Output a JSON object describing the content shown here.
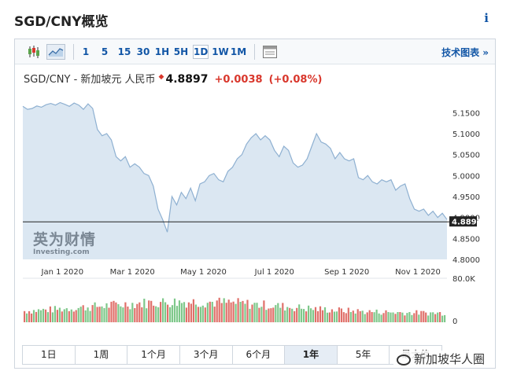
{
  "page": {
    "title": "SGD/CNY概览",
    "info_icon": "i"
  },
  "toolbar": {
    "chart_type_icons": [
      "candlestick-icon",
      "area-chart-icon"
    ],
    "intervals": [
      "1",
      "5",
      "15",
      "30",
      "1H",
      "5H",
      "1D",
      "1W",
      "1M"
    ],
    "active_interval": "1D",
    "settings_icon": "table-icon",
    "advanced_chart_label": "技术图表 »"
  },
  "quote": {
    "pair_name": "SGD/CNY - 新加坡元 人民币",
    "direction_icon": "up-arrow-icon",
    "price": "4.8897",
    "change": "+0.0038",
    "change_percent": "(+0.08%)",
    "color_up": "#d9372c"
  },
  "logo": {
    "cn_text": "英为财情",
    "en_text": "Investing.com"
  },
  "chart_data": {
    "type": "area",
    "x_tick_labels": [
      "Jan 1 2020",
      "Mar 1 2020",
      "May 1 2020",
      "Jul 1 2020",
      "Sep 1 2020",
      "Nov 1 2020"
    ],
    "y_tick_labels": [
      "5.1500",
      "5.1000",
      "5.0500",
      "5.0000",
      "4.9500",
      "4.9000",
      "4.8500",
      "4.8000"
    ],
    "ylim": [
      4.8,
      5.19
    ],
    "current_value": 4.8897,
    "current_value_label": "4.8897",
    "series": [
      {
        "x": [
          "2019-11-28",
          "2019-12-02",
          "2019-12-06",
          "2019-12-10",
          "2019-12-14",
          "2019-12-18",
          "2019-12-22",
          "2019-12-26",
          "2019-12-30",
          "2020-01-03",
          "2020-01-07",
          "2020-01-11",
          "2020-01-15",
          "2020-01-19",
          "2020-01-23",
          "2020-01-27",
          "2020-01-31",
          "2020-02-04",
          "2020-02-08",
          "2020-02-12",
          "2020-02-16",
          "2020-02-20",
          "2020-02-24",
          "2020-02-28",
          "2020-03-03",
          "2020-03-07",
          "2020-03-11",
          "2020-03-15",
          "2020-03-19",
          "2020-03-23",
          "2020-03-27",
          "2020-03-31",
          "2020-04-04",
          "2020-04-08",
          "2020-04-12",
          "2020-04-16",
          "2020-04-20",
          "2020-04-24",
          "2020-04-28",
          "2020-05-02",
          "2020-05-06",
          "2020-05-10",
          "2020-05-14",
          "2020-05-18",
          "2020-05-22",
          "2020-05-26",
          "2020-05-30",
          "2020-06-03",
          "2020-06-07",
          "2020-06-11",
          "2020-06-15",
          "2020-06-19",
          "2020-06-23",
          "2020-06-27",
          "2020-07-01",
          "2020-07-05",
          "2020-07-09",
          "2020-07-13",
          "2020-07-17",
          "2020-07-21",
          "2020-07-25",
          "2020-07-29",
          "2020-08-02",
          "2020-08-06",
          "2020-08-10",
          "2020-08-14",
          "2020-08-18",
          "2020-08-22",
          "2020-08-26",
          "2020-08-30",
          "2020-09-03",
          "2020-09-07",
          "2020-09-11",
          "2020-09-15",
          "2020-09-19",
          "2020-09-23",
          "2020-09-27",
          "2020-10-01",
          "2020-10-05",
          "2020-10-09",
          "2020-10-13",
          "2020-10-17",
          "2020-10-21",
          "2020-10-25",
          "2020-10-29",
          "2020-11-02",
          "2020-11-06",
          "2020-11-10",
          "2020-11-14",
          "2020-11-18",
          "2020-11-22",
          "2020-11-26"
        ],
        "values": [
          5.165,
          5.158,
          5.16,
          5.166,
          5.163,
          5.169,
          5.172,
          5.168,
          5.174,
          5.17,
          5.165,
          5.173,
          5.168,
          5.158,
          5.171,
          5.16,
          5.11,
          5.095,
          5.1,
          5.085,
          5.045,
          5.035,
          5.045,
          5.02,
          5.028,
          5.02,
          5.005,
          5.0,
          4.975,
          4.92,
          4.895,
          4.865,
          4.95,
          4.93,
          4.96,
          4.945,
          4.97,
          4.94,
          4.98,
          4.985,
          5.0,
          5.005,
          4.99,
          4.985,
          5.01,
          5.02,
          5.04,
          5.05,
          5.075,
          5.09,
          5.1,
          5.085,
          5.095,
          5.085,
          5.06,
          5.045,
          5.07,
          5.06,
          5.03,
          5.02,
          5.025,
          5.04,
          5.07,
          5.1,
          5.08,
          5.075,
          5.065,
          5.04,
          5.055,
          5.04,
          5.035,
          5.04,
          4.995,
          4.99,
          5.0,
          4.985,
          4.98,
          4.99,
          4.985,
          4.99,
          4.965,
          4.975,
          4.98,
          4.945,
          4.92,
          4.915,
          4.92,
          4.905,
          4.915,
          4.9,
          4.91,
          4.895
        ]
      }
    ],
    "volume_tick_labels": [
      "80.0K",
      "0"
    ],
    "volume_colors": {
      "up": "#e0706a",
      "down": "#7ec88a"
    },
    "grid": false,
    "fill_color": "#dbe7f2",
    "line_color": "#8eb0d1"
  },
  "range_buttons": [
    "1日",
    "1周",
    "1个月",
    "3个月",
    "6个月",
    "1年",
    "5年",
    "最大值"
  ],
  "active_range": "1年",
  "watermark": "新加坡华人圈"
}
